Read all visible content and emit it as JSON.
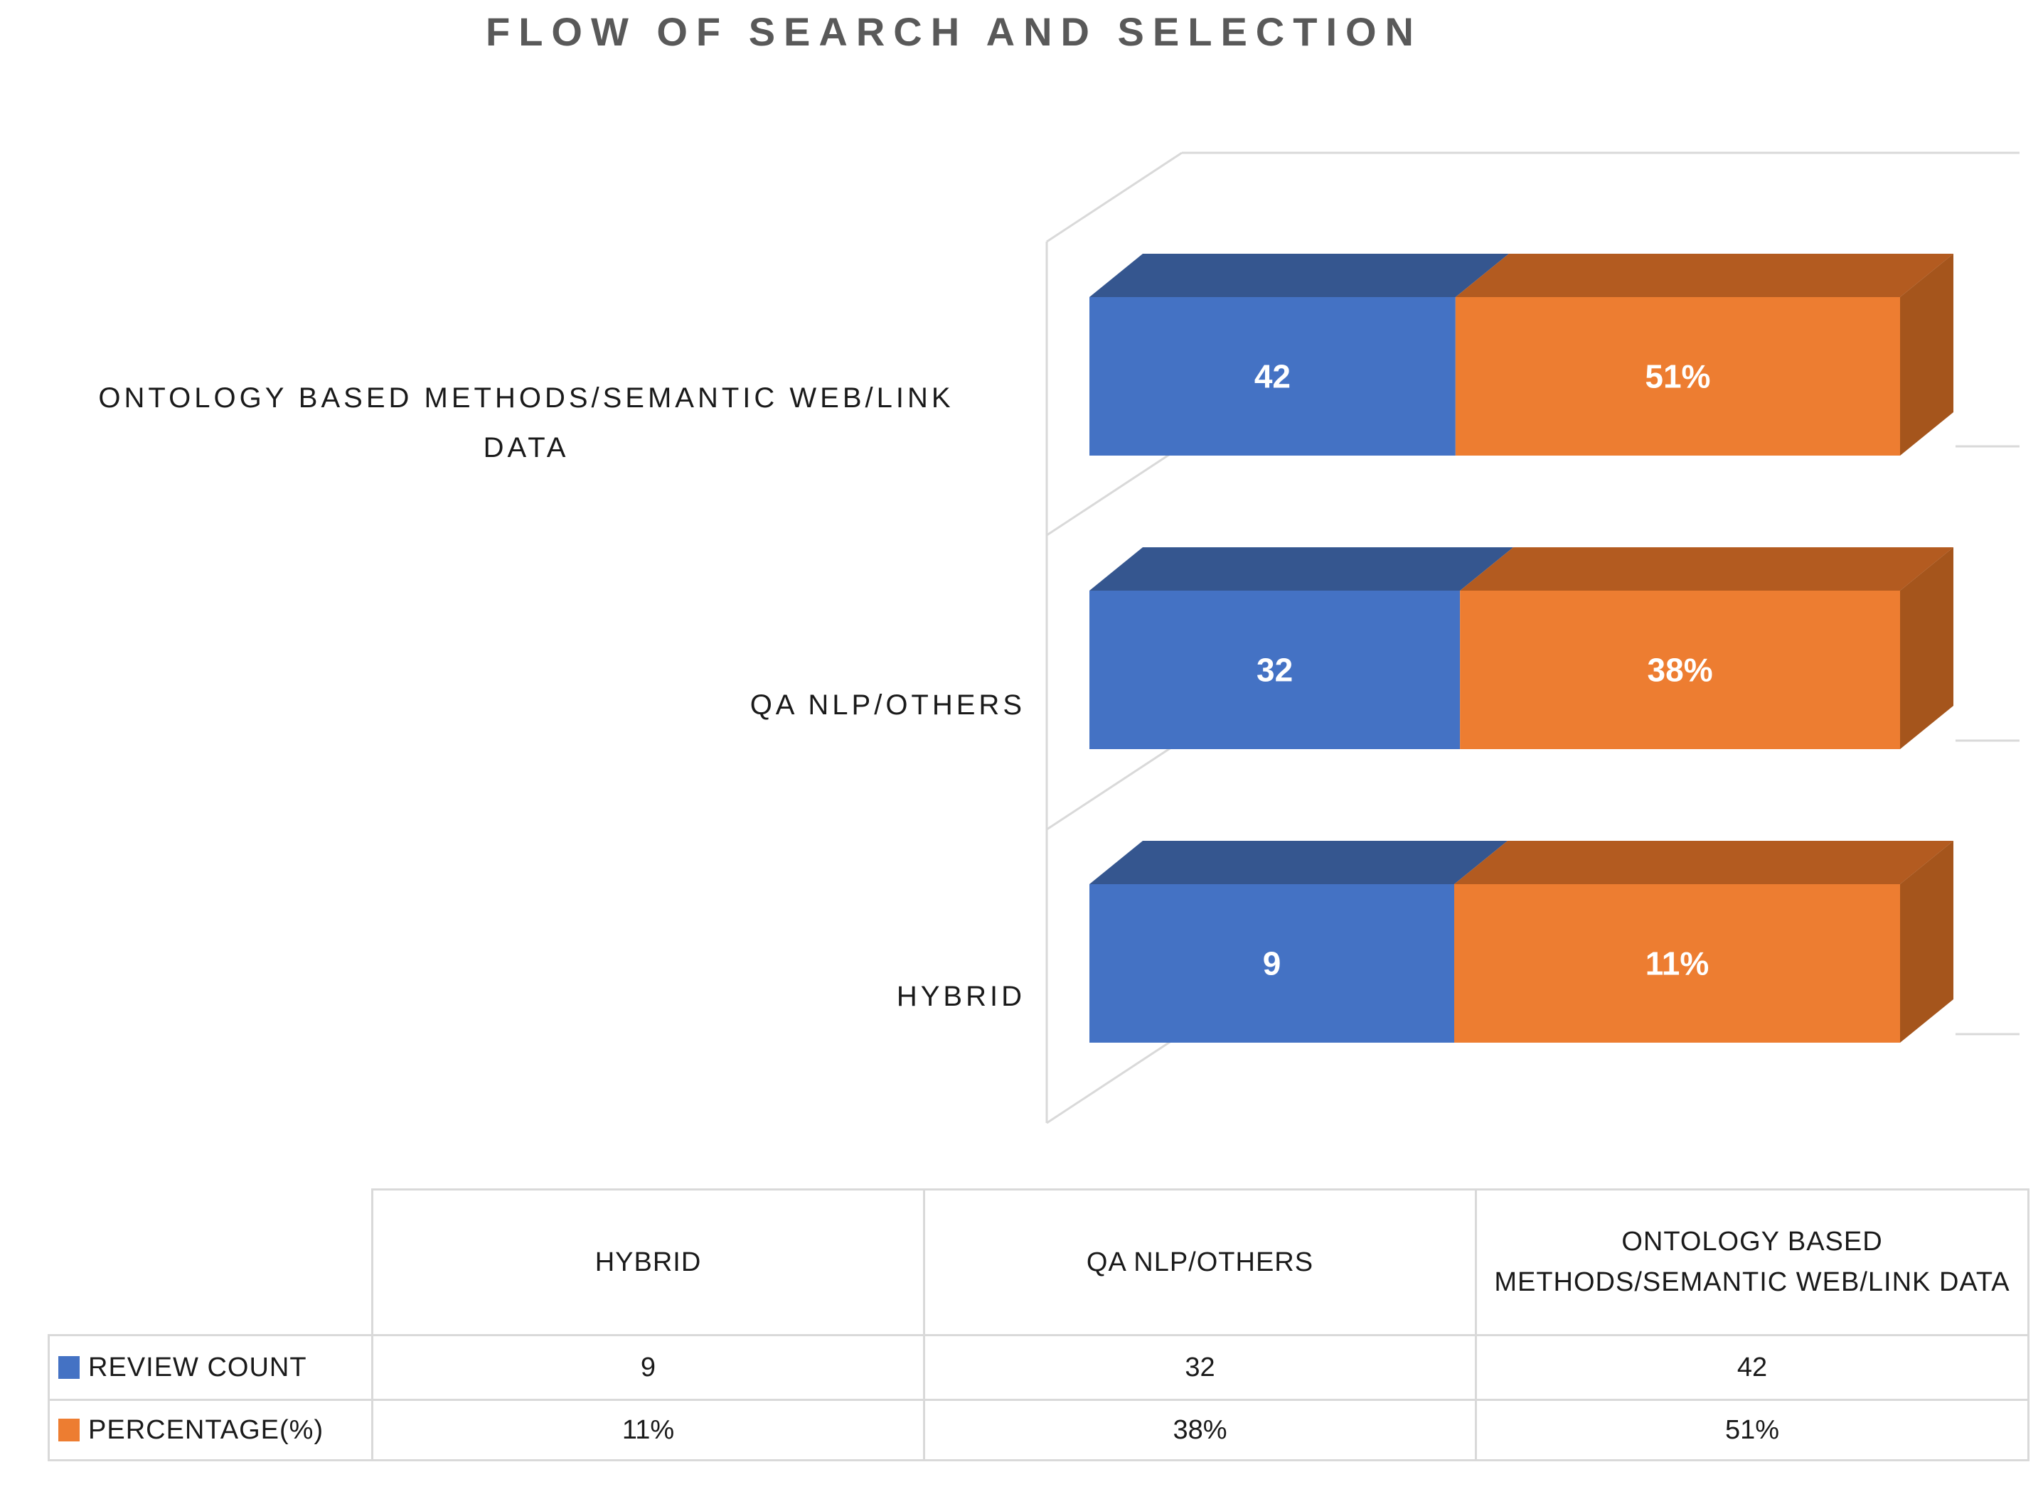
{
  "title": "FLOW OF SEARCH AND SELECTION",
  "chart_data": {
    "type": "bar",
    "subtype": "3d-horizontal-100%-stacked",
    "title": "FLOW OF SEARCH AND SELECTION",
    "categories": [
      "ONTOLOGY BASED METHODS/SEMANTIC WEB/LINK DATA",
      "QA NLP/OTHERS",
      "HYBRID"
    ],
    "series": [
      {
        "name": "REVIEW COUNT",
        "color": "#4472C4",
        "values": [
          42,
          32,
          9
        ],
        "labels": [
          "42",
          "32",
          "9"
        ]
      },
      {
        "name": "PERCENTAGE(%)",
        "color": "#ED7D31",
        "values": [
          51,
          38,
          11
        ],
        "labels": [
          "51%",
          "38%",
          "11%"
        ]
      }
    ],
    "data_labels": "shown-white-inside-segments",
    "legend_position": "bottom-table",
    "gridlines": true
  },
  "table": {
    "columns": [
      "HYBRID",
      "QA NLP/OTHERS",
      "ONTOLOGY BASED METHODS/SEMANTIC WEB/LINK DATA"
    ],
    "rows": [
      {
        "label": "REVIEW COUNT",
        "swatch": "#4472C4",
        "values": [
          "9",
          "32",
          "42"
        ]
      },
      {
        "label": "PERCENTAGE(%)",
        "swatch": "#ED7D31",
        "values": [
          "11%",
          "38%",
          "51%"
        ]
      }
    ]
  },
  "colors": {
    "blue_front": "#4472C4",
    "blue_top": "#35568F",
    "orange_front": "#ED7D31",
    "orange_top": "#B35B20",
    "orange_side": "#A5551C",
    "wall_line": "#D9D9D9",
    "title_text": "#595959",
    "axis_label_text": "#1A1A1A",
    "bar_label_text": "#FFFFFF"
  }
}
